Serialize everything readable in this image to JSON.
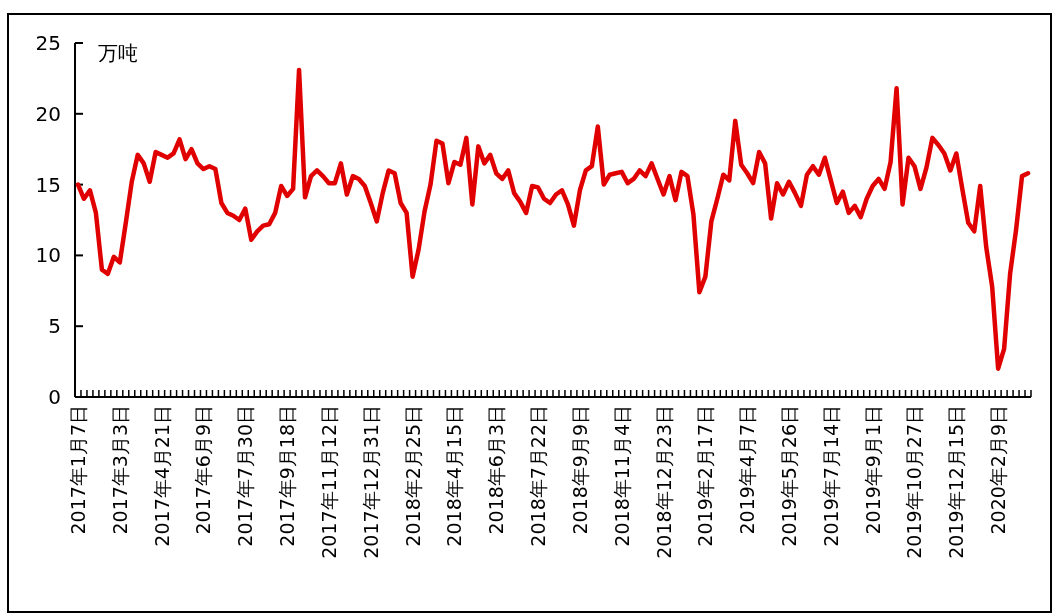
{
  "chart_data": {
    "type": "line",
    "ylabel": "万吨",
    "color": "#e00000",
    "ylim": [
      0,
      25
    ],
    "yticks": [
      0,
      5,
      10,
      15,
      20,
      25
    ],
    "categories": [
      "2017年1月7日",
      null,
      null,
      null,
      null,
      null,
      null,
      "2017年3月3日",
      null,
      null,
      null,
      null,
      null,
      null,
      "2017年4月21日",
      null,
      null,
      null,
      null,
      null,
      null,
      "2017年6月9日",
      null,
      null,
      null,
      null,
      null,
      null,
      "2017年7月30日",
      null,
      null,
      null,
      null,
      null,
      null,
      "2017年9月18日",
      null,
      null,
      null,
      null,
      null,
      null,
      "2017年11月12日",
      null,
      null,
      null,
      null,
      null,
      null,
      "2017年12月31日",
      null,
      null,
      null,
      null,
      null,
      null,
      "2018年2月25日",
      null,
      null,
      null,
      null,
      null,
      null,
      "2018年4月15日",
      null,
      null,
      null,
      null,
      null,
      null,
      "2018年6月3日",
      null,
      null,
      null,
      null,
      null,
      null,
      "2018年7月22日",
      null,
      null,
      null,
      null,
      null,
      null,
      "2018年9月9日",
      null,
      null,
      null,
      null,
      null,
      null,
      "2018年11月4日",
      null,
      null,
      null,
      null,
      null,
      null,
      "2018年12月23日",
      null,
      null,
      null,
      null,
      null,
      null,
      "2019年2月17日",
      null,
      null,
      null,
      null,
      null,
      null,
      "2019年4月7日",
      null,
      null,
      null,
      null,
      null,
      null,
      "2019年5月26日",
      null,
      null,
      null,
      null,
      null,
      null,
      "2019年7月14日",
      null,
      null,
      null,
      null,
      null,
      null,
      "2019年9月1日",
      null,
      null,
      null,
      null,
      null,
      null,
      "2019年10月27日",
      null,
      null,
      null,
      null,
      null,
      null,
      "2019年12月15日",
      null,
      null,
      null,
      null,
      null,
      null,
      "2020年2月9日",
      null,
      null,
      null,
      null,
      null
    ],
    "values": [
      15.0,
      14.0,
      14.6,
      13.0,
      9.0,
      8.7,
      9.9,
      9.5,
      12.3,
      15.2,
      17.1,
      16.5,
      15.2,
      17.3,
      17.1,
      16.9,
      17.2,
      18.2,
      16.8,
      17.5,
      16.5,
      16.1,
      16.3,
      16.1,
      13.7,
      13.0,
      12.8,
      12.5,
      13.3,
      11.1,
      11.7,
      12.1,
      12.2,
      13.0,
      14.9,
      14.2,
      14.7,
      23.1,
      14.1,
      15.6,
      16.0,
      15.6,
      15.1,
      15.1,
      16.5,
      14.3,
      15.6,
      15.4,
      14.9,
      13.7,
      12.4,
      14.4,
      16.0,
      15.8,
      13.7,
      13.0,
      8.5,
      10.4,
      13.1,
      15.0,
      18.1,
      17.9,
      15.1,
      16.6,
      16.4,
      18.3,
      13.6,
      17.7,
      16.5,
      17.1,
      15.8,
      15.4,
      16.0,
      14.4,
      13.8,
      13.0,
      14.9,
      14.8,
      14.0,
      13.7,
      14.3,
      14.6,
      13.6,
      12.1,
      14.6,
      16.0,
      16.3,
      19.1,
      15.0,
      15.7,
      15.8,
      15.9,
      15.1,
      15.4,
      16.0,
      15.6,
      16.5,
      15.4,
      14.3,
      15.6,
      13.9,
      15.9,
      15.6,
      12.9,
      7.4,
      8.5,
      12.4,
      14.0,
      15.7,
      15.3,
      19.5,
      16.4,
      15.8,
      15.1,
      17.3,
      16.5,
      12.6,
      15.1,
      14.3,
      15.2,
      14.4,
      13.5,
      15.7,
      16.3,
      15.7,
      16.9,
      15.3,
      13.7,
      14.5,
      13.0,
      13.5,
      12.7,
      14.0,
      14.9,
      15.4,
      14.7,
      16.6,
      21.8,
      13.6,
      16.9,
      16.3,
      14.7,
      16.2,
      18.3,
      17.8,
      17.2,
      16.0,
      17.2,
      14.7,
      12.3,
      11.7,
      14.9,
      10.6,
      7.8,
      2.0,
      3.4,
      8.7,
      11.8,
      15.6,
      15.8
    ]
  }
}
